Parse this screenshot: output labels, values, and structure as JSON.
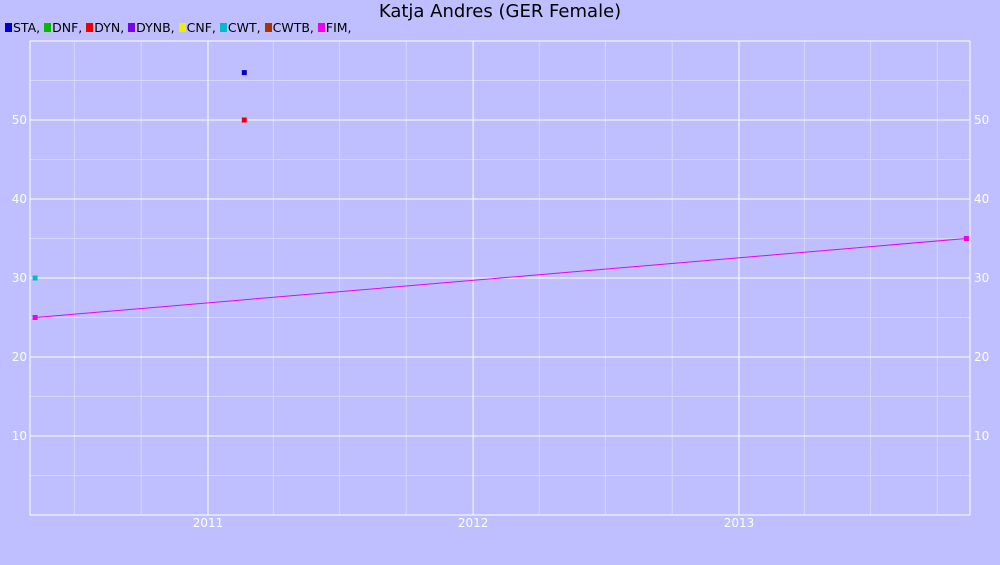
{
  "chart_data": {
    "type": "scatter",
    "title": "Katja Andres (GER Female)",
    "xlabel": "",
    "ylabel": "",
    "x_ticks": [
      "2011",
      "2012",
      "2013"
    ],
    "y_ticks": [
      10,
      20,
      30,
      40,
      50
    ],
    "xlim": [
      "2010-05-01",
      "2013-11-15"
    ],
    "ylim": [
      0,
      60
    ],
    "grid": true,
    "legend": "top-left",
    "legend_entries": [
      {
        "label": "STA,",
        "color": "#0000cc"
      },
      {
        "label": "DNF,",
        "color": "#00bb00"
      },
      {
        "label": "DYN,",
        "color": "#ee0000"
      },
      {
        "label": "DYNB,",
        "color": "#7b00ee"
      },
      {
        "label": "CNF,",
        "color": "#eeee00"
      },
      {
        "label": "CWT,",
        "color": "#00bbcc"
      },
      {
        "label": "CWTB,",
        "color": "#aa3300"
      },
      {
        "label": "FIM,",
        "color": "#ee00ee"
      }
    ],
    "series": [
      {
        "name": "STA",
        "color": "#0000cc",
        "connected": false,
        "points": [
          {
            "x": "2011-02-20",
            "y": 56
          }
        ]
      },
      {
        "name": "DYN",
        "color": "#ee0000",
        "connected": false,
        "points": [
          {
            "x": "2011-02-20",
            "y": 50
          }
        ]
      },
      {
        "name": "CWT",
        "color": "#00bbcc",
        "connected": false,
        "points": [
          {
            "x": "2010-05-08",
            "y": 30
          }
        ]
      },
      {
        "name": "FIM",
        "color": "#ee00ee",
        "connected": true,
        "points": [
          {
            "x": "2010-05-08",
            "y": 25
          },
          {
            "x": "2013-11-10",
            "y": 35
          }
        ]
      }
    ]
  }
}
